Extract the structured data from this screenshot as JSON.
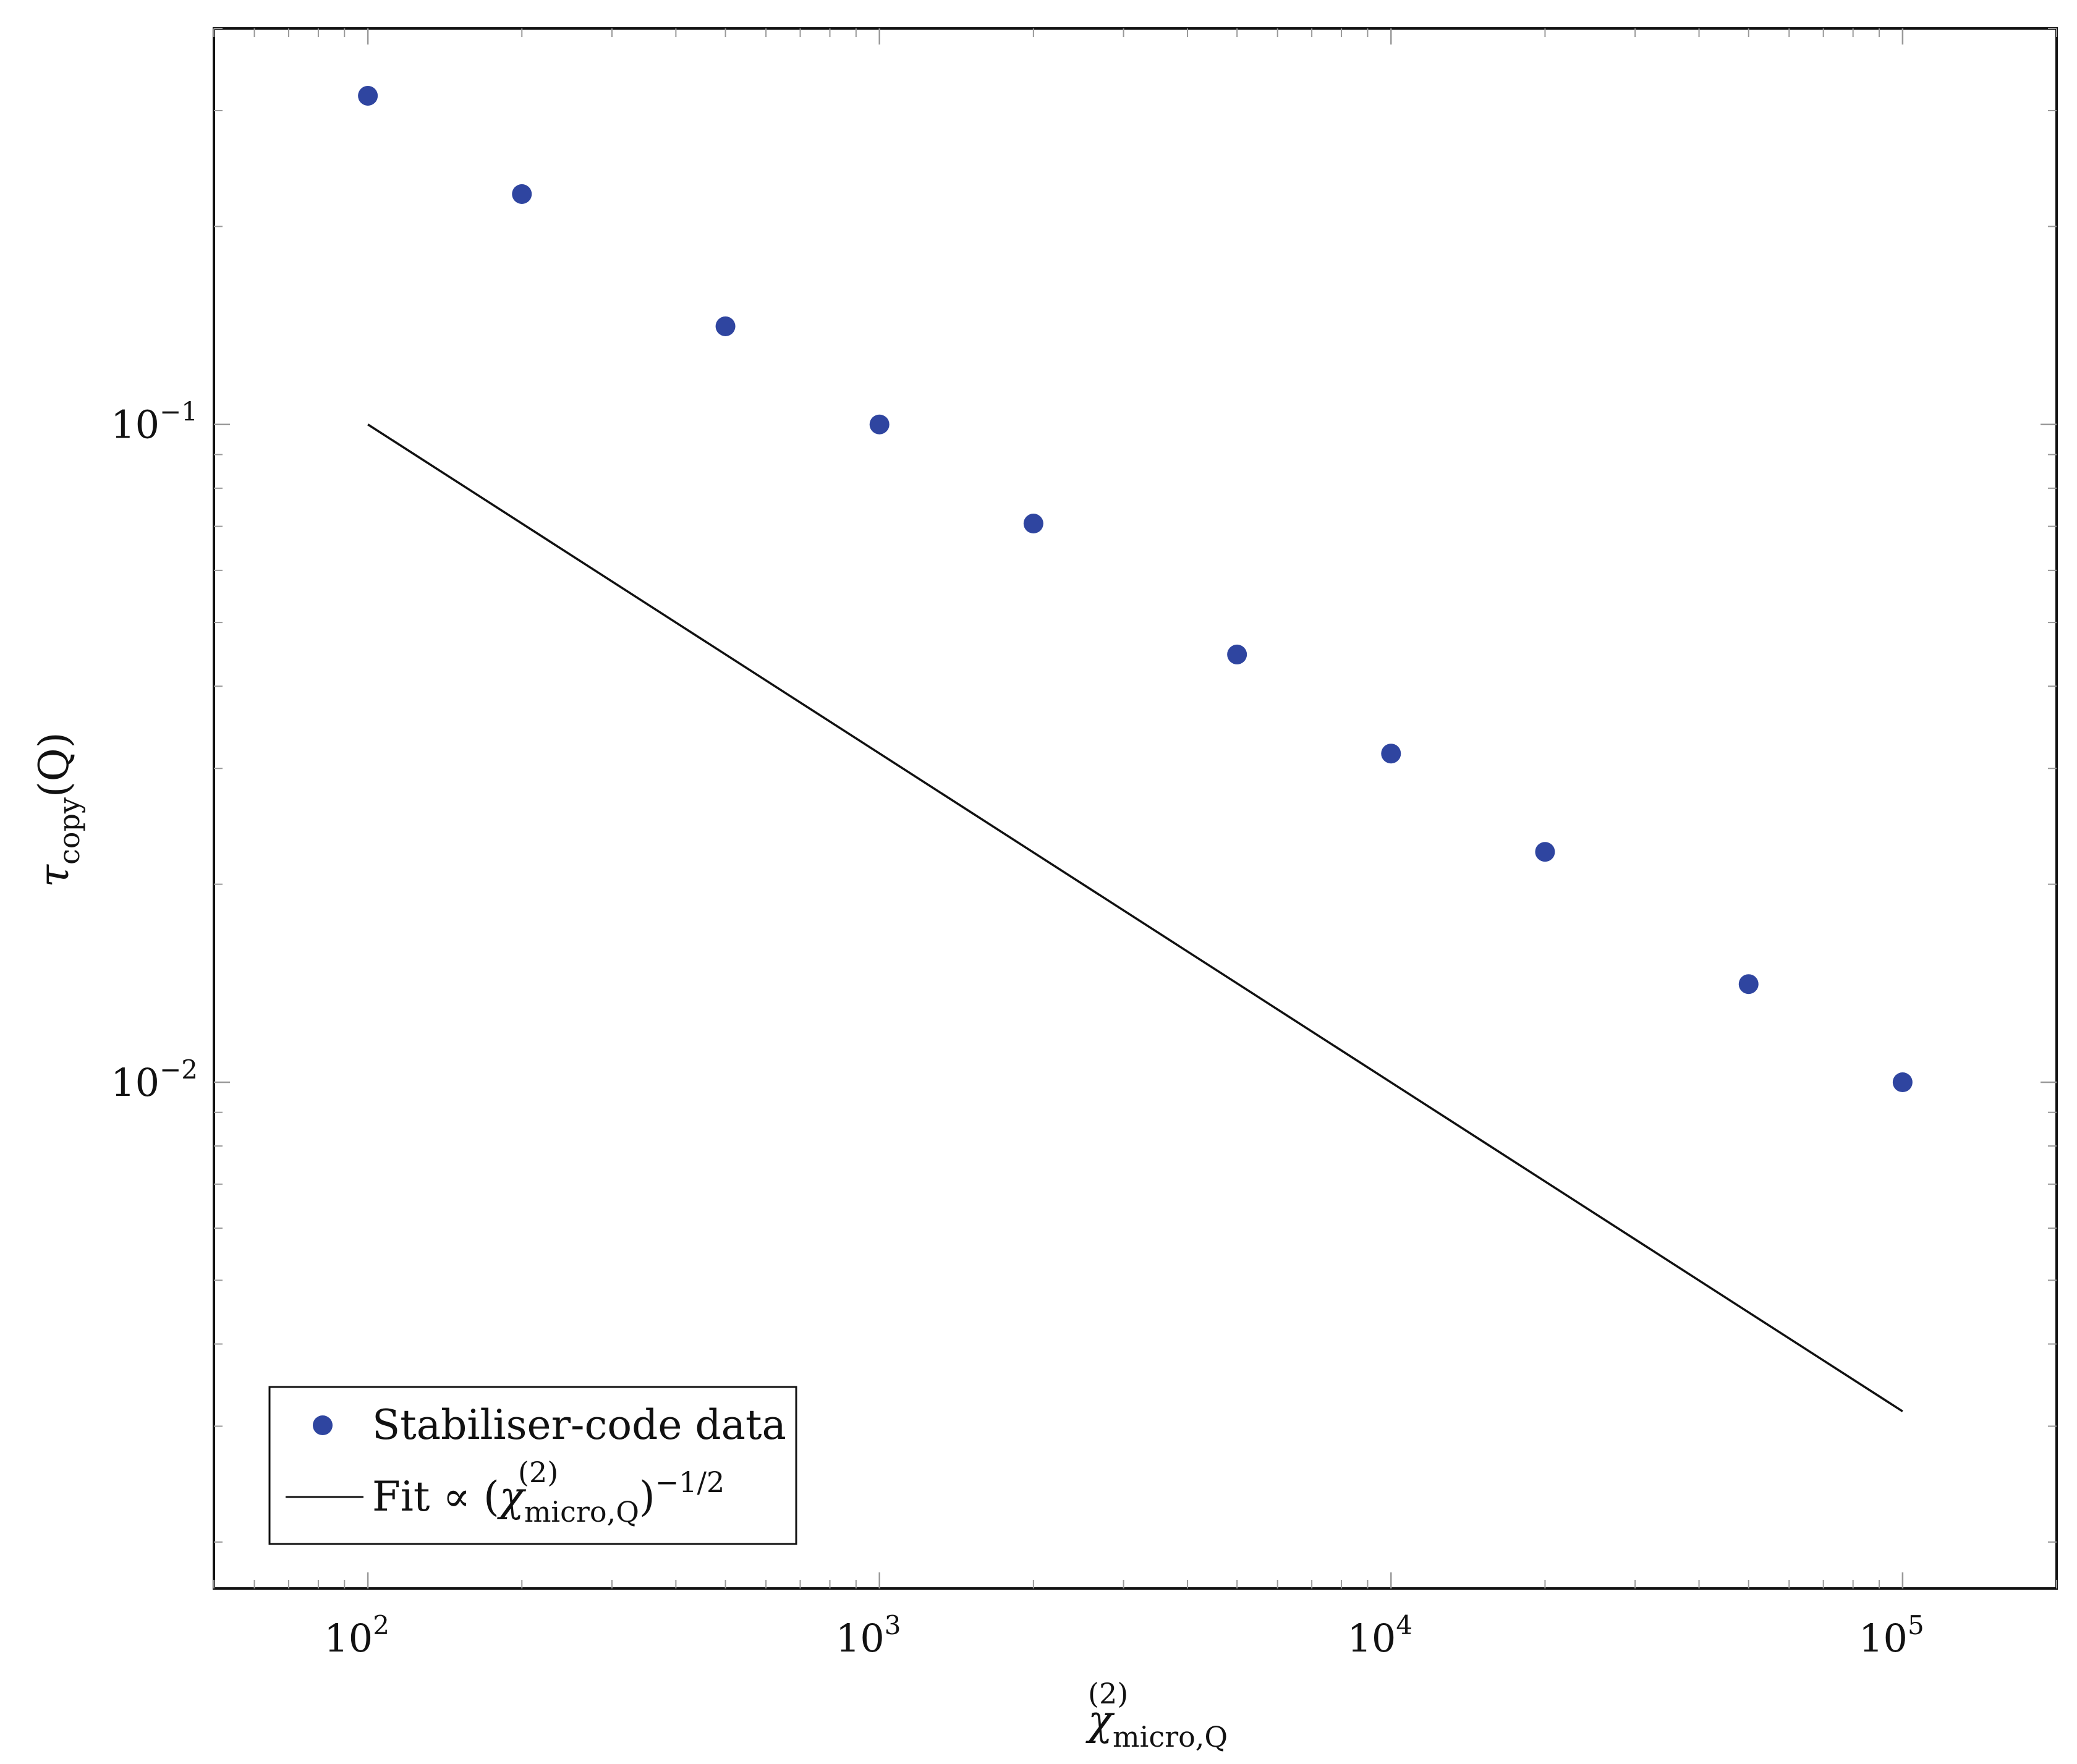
{
  "chart_data": {
    "type": "scatter",
    "x_scale": "log",
    "y_scale": "log",
    "xlim": [
      50,
      200000
    ],
    "ylim": [
      0.0017,
      0.4
    ],
    "grid": false,
    "legend_position": "bottom-left",
    "x_ticks": [
      {
        "value": 100,
        "base": "10",
        "exp": "2"
      },
      {
        "value": 1000,
        "base": "10",
        "exp": "3"
      },
      {
        "value": 10000,
        "base": "10",
        "exp": "4"
      },
      {
        "value": 100000,
        "base": "10",
        "exp": "5"
      }
    ],
    "y_ticks": [
      {
        "value": 0.1,
        "base": "10",
        "exp": "−1"
      },
      {
        "value": 0.01,
        "base": "10",
        "exp": "−2"
      }
    ],
    "xlabel": {
      "main": "χ",
      "sup": "(2)",
      "sub": "micro,Q"
    },
    "ylabel": {
      "main": "τ",
      "sub": "copy",
      "arg": "(Q)"
    },
    "series": [
      {
        "name": "Stabiliser-code data",
        "kind": "scatter",
        "color": "#2f45a0",
        "points": [
          {
            "x": 100,
            "y": 0.316
          },
          {
            "x": 200,
            "y": 0.224
          },
          {
            "x": 500,
            "y": 0.141
          },
          {
            "x": 1000,
            "y": 0.1
          },
          {
            "x": 2000,
            "y": 0.0707
          },
          {
            "x": 5000,
            "y": 0.0447
          },
          {
            "x": 10000,
            "y": 0.0316
          },
          {
            "x": 20000,
            "y": 0.0224
          },
          {
            "x": 50000,
            "y": 0.0141
          },
          {
            "x": 100000,
            "y": 0.01
          }
        ]
      },
      {
        "name": "Fit ∝ (χ(2)micro,Q)−1/2",
        "kind": "line",
        "color": "#111111",
        "points": [
          {
            "x": 100,
            "y": 0.1
          },
          {
            "x": 100000,
            "y": 0.00316
          }
        ]
      }
    ],
    "legend": {
      "entries": [
        {
          "label": "Stabiliser-code data"
        },
        {
          "label_prefix": "Fit ∝ (",
          "label_main": "χ",
          "label_sup": "(2)",
          "label_sub": "micro,Q",
          "label_suffix": ")",
          "label_exp": "−1/2"
        }
      ]
    }
  }
}
